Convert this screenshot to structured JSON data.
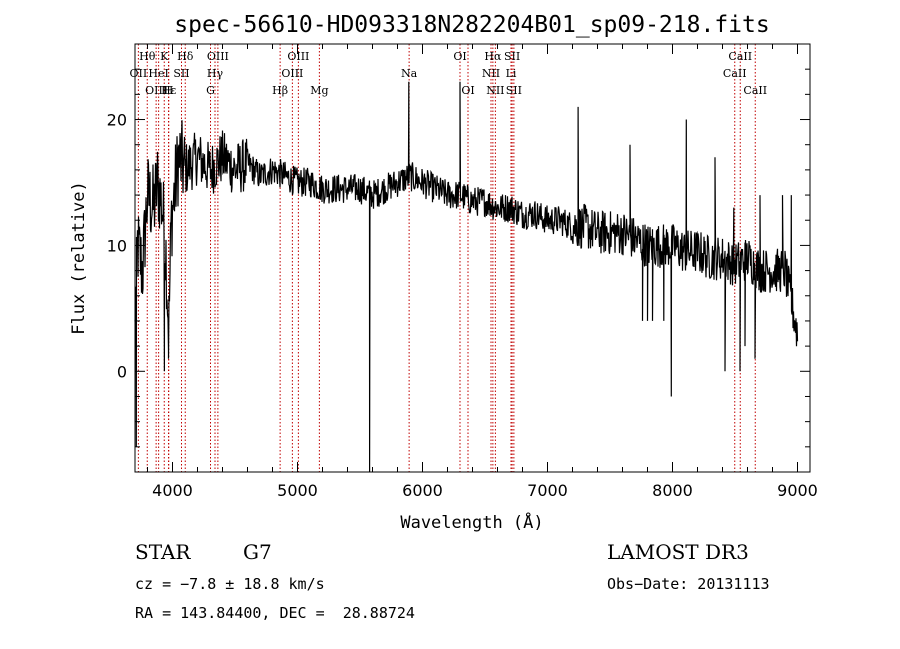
{
  "chart_data": {
    "type": "line",
    "title": "spec-56610-HD093318N282204B01_sp09-218.fits",
    "xlabel": "Wavelength (Å)",
    "ylabel": "Flux (relative)",
    "xlim": [
      3700,
      9100
    ],
    "ylim": [
      -8,
      26
    ],
    "xticks": [
      4000,
      5000,
      6000,
      7000,
      8000,
      9000
    ],
    "yticks": [
      0,
      10,
      20
    ],
    "series": [
      {
        "name": "flux",
        "anchors": [
          [
            3700,
            3
          ],
          [
            3720,
            10
          ],
          [
            3760,
            8
          ],
          [
            3800,
            14
          ],
          [
            3850,
            13
          ],
          [
            3880,
            15
          ],
          [
            3920,
            13
          ],
          [
            3950,
            9
          ],
          [
            3970,
            3
          ],
          [
            3990,
            12
          ],
          [
            4050,
            17
          ],
          [
            4100,
            16
          ],
          [
            4200,
            17
          ],
          [
            4300,
            16
          ],
          [
            4400,
            17
          ],
          [
            4500,
            16
          ],
          [
            4600,
            16.5
          ],
          [
            4700,
            15.5
          ],
          [
            4800,
            16
          ],
          [
            4900,
            15.5
          ],
          [
            5000,
            15
          ],
          [
            5100,
            15
          ],
          [
            5200,
            14.5
          ],
          [
            5300,
            14.5
          ],
          [
            5400,
            14.5
          ],
          [
            5500,
            14.5
          ],
          [
            5600,
            14
          ],
          [
            5700,
            14.5
          ],
          [
            5800,
            15
          ],
          [
            5900,
            15.5
          ],
          [
            6000,
            15
          ],
          [
            6100,
            14.5
          ],
          [
            6200,
            14
          ],
          [
            6300,
            14
          ],
          [
            6400,
            13.5
          ],
          [
            6500,
            13.5
          ],
          [
            6600,
            13
          ],
          [
            6700,
            13
          ],
          [
            6800,
            12.5
          ],
          [
            6900,
            12.5
          ],
          [
            7000,
            12
          ],
          [
            7100,
            12
          ],
          [
            7200,
            11.5
          ],
          [
            7300,
            11.5
          ],
          [
            7400,
            11
          ],
          [
            7500,
            11
          ],
          [
            7600,
            11
          ],
          [
            7700,
            10.5
          ],
          [
            7800,
            10
          ],
          [
            7900,
            10
          ],
          [
            8000,
            10
          ],
          [
            8100,
            9.5
          ],
          [
            8200,
            9.5
          ],
          [
            8300,
            9
          ],
          [
            8400,
            9
          ],
          [
            8500,
            8.5
          ],
          [
            8600,
            9
          ],
          [
            8700,
            8
          ],
          [
            8800,
            8
          ],
          [
            8900,
            8
          ],
          [
            9000,
            3
          ]
        ],
        "features": [
          [
            3710,
            -6
          ],
          [
            3935,
            0
          ],
          [
            3968,
            1
          ],
          [
            5577,
            -8
          ],
          [
            5890,
            23
          ],
          [
            6300,
            23
          ],
          [
            7245,
            21
          ],
          [
            7660,
            18
          ],
          [
            7760,
            4
          ],
          [
            7800,
            4
          ],
          [
            7840,
            4
          ],
          [
            7930,
            4
          ],
          [
            7990,
            -2
          ],
          [
            8110,
            20
          ],
          [
            8340,
            17
          ],
          [
            8420,
            0
          ],
          [
            8490,
            13
          ],
          [
            8540,
            0
          ],
          [
            8580,
            2
          ],
          [
            8660,
            1
          ],
          [
            8700,
            14
          ],
          [
            8880,
            14
          ],
          [
            8950,
            14
          ]
        ]
      }
    ],
    "spectral_lines": [
      {
        "label": "Hθ",
        "wavelength": 3798,
        "row": 1
      },
      {
        "label": "OII",
        "wavelength": 3727,
        "row": 2
      },
      {
        "label": "OIII",
        "wavelength": 3869,
        "row": 3
      },
      {
        "label": "K",
        "wavelength": 3934,
        "row": 1
      },
      {
        "label": "Hε",
        "wavelength": 3970,
        "row": 3
      },
      {
        "label": "H",
        "wavelength": 3968,
        "row": 3
      },
      {
        "label": "HeI",
        "wavelength": 3889,
        "row": 2
      },
      {
        "label": "SII",
        "wavelength": 4072,
        "row": 2
      },
      {
        "label": "Hδ",
        "wavelength": 4102,
        "row": 1
      },
      {
        "label": "OIII",
        "wavelength": 4363,
        "row": 1
      },
      {
        "label": "Hγ",
        "wavelength": 4340,
        "row": 2
      },
      {
        "label": "G",
        "wavelength": 4304,
        "row": 3
      },
      {
        "label": "Hβ",
        "wavelength": 4861,
        "row": 3
      },
      {
        "label": "OIII",
        "wavelength": 5007,
        "row": 1
      },
      {
        "label": "OIII",
        "wavelength": 4959,
        "row": 2
      },
      {
        "label": "Mg",
        "wavelength": 5175,
        "row": 3
      },
      {
        "label": "Na",
        "wavelength": 5893,
        "row": 2
      },
      {
        "label": "OI",
        "wavelength": 6300,
        "row": 1
      },
      {
        "label": "OI",
        "wavelength": 6364,
        "row": 3
      },
      {
        "label": "Hα",
        "wavelength": 6563,
        "row": 1
      },
      {
        "label": "NII",
        "wavelength": 6548,
        "row": 2
      },
      {
        "label": "NII",
        "wavelength": 6583,
        "row": 3
      },
      {
        "label": "SII",
        "wavelength": 6717,
        "row": 1
      },
      {
        "label": "Li",
        "wavelength": 6708,
        "row": 2
      },
      {
        "label": "SII",
        "wavelength": 6731,
        "row": 3
      },
      {
        "label": "CaII",
        "wavelength": 8542,
        "row": 1
      },
      {
        "label": "CaII",
        "wavelength": 8498,
        "row": 2
      },
      {
        "label": "CaII",
        "wavelength": 8662,
        "row": 3
      }
    ]
  },
  "info": {
    "object_class": "STAR",
    "subclass": "G7",
    "survey": "LAMOST DR3",
    "cz": "cz = −7.8 ± 18.8 km/s",
    "obs_date": "Obs−Date: 20131113",
    "coords": "RA = 143.84400, DEC =  28.88724"
  }
}
